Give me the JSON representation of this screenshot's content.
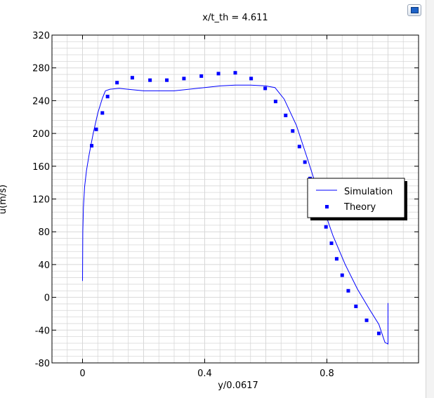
{
  "toolbar": {
    "snapshot_icon": "camera-screen-icon"
  },
  "colors": {
    "series": "#0000ff",
    "grid": "#d8d8d8",
    "axis": "#000000"
  },
  "chart_data": {
    "type": "line",
    "title": "x/t_th = 4.611",
    "xlabel": "y/0.0617",
    "ylabel": "u(m/s)",
    "xlim": [
      -0.1,
      1.1
    ],
    "ylim": [
      -80,
      320
    ],
    "x_ticks": [
      0,
      0.4,
      0.8
    ],
    "x_tick_labels": [
      "0",
      "0.4",
      "0.8"
    ],
    "y_ticks": [
      -80,
      -40,
      0,
      40,
      80,
      120,
      160,
      200,
      240,
      280,
      320
    ],
    "y_tick_labels": [
      "-80",
      "-40",
      "0",
      "40",
      "80",
      "120",
      "160",
      "200",
      "240",
      "280",
      "320"
    ],
    "grid": true,
    "legend_position": "center-right",
    "series": [
      {
        "name": "Simulation",
        "style": "line",
        "x": [
          0,
          0.001,
          0.003,
          0.007,
          0.013,
          0.022,
          0.035,
          0.05,
          0.065,
          0.075,
          0.09,
          0.12,
          0.2,
          0.3,
          0.4,
          0.45,
          0.5,
          0.55,
          0.6,
          0.63,
          0.66,
          0.7,
          0.74,
          0.78,
          0.82,
          0.86,
          0.9,
          0.94,
          0.97,
          0.99,
          1.0,
          1.0
        ],
        "y": [
          20,
          80,
          110,
          135,
          155,
          175,
          200,
          225,
          243,
          252,
          254,
          255,
          252,
          252,
          256,
          258,
          259,
          259,
          258,
          256,
          242,
          210,
          165,
          118,
          75,
          40,
          10,
          -15,
          -33,
          -55,
          -57,
          -7
        ]
      },
      {
        "name": "Theory",
        "style": "markers",
        "x": [
          0.03,
          0.045,
          0.065,
          0.082,
          0.113,
          0.163,
          0.221,
          0.276,
          0.332,
          0.389,
          0.445,
          0.5,
          0.552,
          0.598,
          0.632,
          0.665,
          0.688,
          0.71,
          0.728,
          0.745,
          0.762,
          0.78,
          0.797,
          0.815,
          0.832,
          0.85,
          0.87,
          0.895,
          0.93,
          0.97
        ],
        "y": [
          185,
          205,
          225,
          245,
          262,
          268,
          265,
          265,
          267,
          270,
          273,
          274,
          267,
          255,
          239,
          222,
          203,
          184,
          165,
          145,
          126,
          106,
          86,
          66,
          47,
          27,
          8,
          -11,
          -28,
          -44
        ]
      }
    ]
  }
}
